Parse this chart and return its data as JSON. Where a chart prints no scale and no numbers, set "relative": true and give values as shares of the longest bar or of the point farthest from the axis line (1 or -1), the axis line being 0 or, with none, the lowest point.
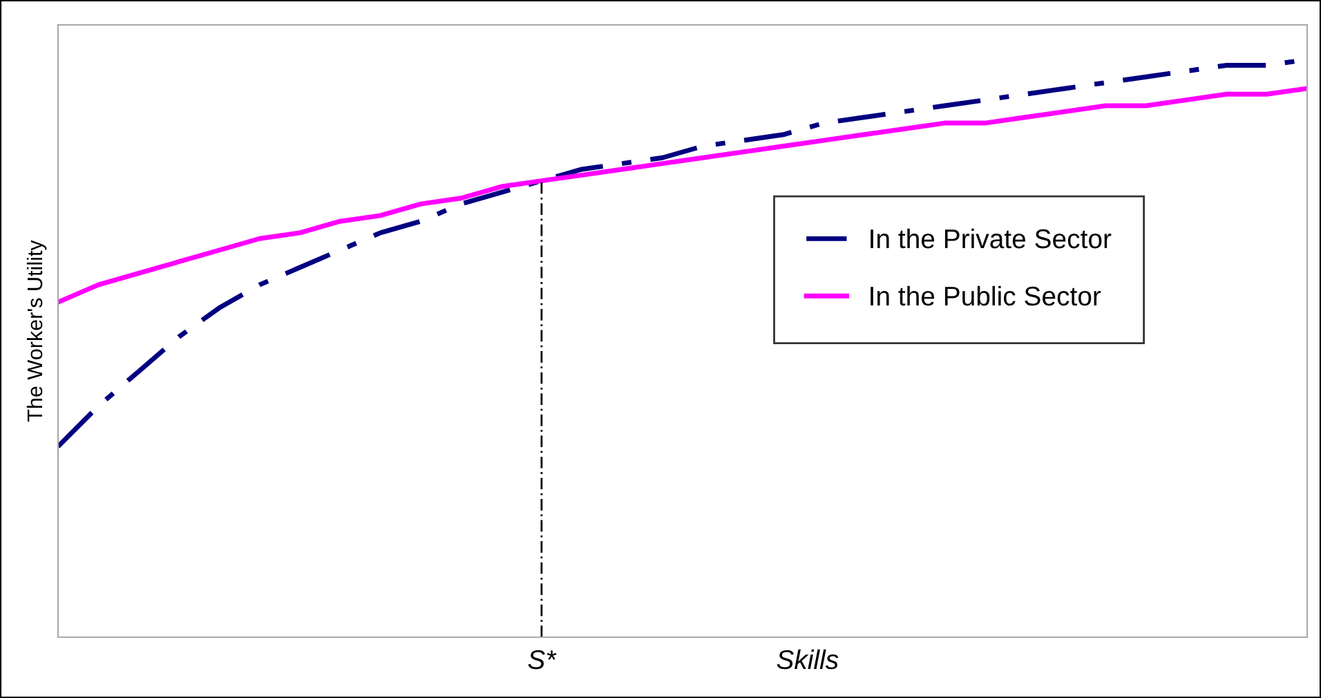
{
  "chart_data": {
    "type": "line",
    "relative": true,
    "ylabel": "The Worker's Utility",
    "xlabel": "Skills",
    "categories": [
      null,
      null,
      null,
      null,
      null,
      null,
      null,
      null,
      null,
      null,
      null,
      null,
      null,
      null,
      null,
      null,
      null,
      null,
      null,
      null,
      null,
      null,
      null,
      null,
      null,
      null,
      null,
      null,
      null,
      null,
      null,
      null
    ],
    "series": [
      {
        "name": "In the Private Sector",
        "color": "#000080",
        "line_style": "dashed",
        "values": [
          0.33,
          0.4,
          0.46,
          0.52,
          0.57,
          0.61,
          0.64,
          0.67,
          0.7,
          0.72,
          0.75,
          0.77,
          0.79,
          0.81,
          0.82,
          0.83,
          0.85,
          0.86,
          0.87,
          0.89,
          0.9,
          0.91,
          0.92,
          0.93,
          0.94,
          0.95,
          0.96,
          0.97,
          0.98,
          0.99,
          0.99,
          1.0
        ]
      },
      {
        "name": "In the Public Sector",
        "color": "#ff00ff",
        "line_style": "solid",
        "values": [
          0.58,
          0.61,
          0.63,
          0.65,
          0.67,
          0.69,
          0.7,
          0.72,
          0.73,
          0.75,
          0.76,
          0.78,
          0.79,
          0.8,
          0.81,
          0.82,
          0.83,
          0.84,
          0.85,
          0.86,
          0.87,
          0.88,
          0.89,
          0.89,
          0.9,
          0.91,
          0.92,
          0.92,
          0.93,
          0.94,
          0.94,
          0.95
        ]
      }
    ],
    "annotations": [
      "S*"
    ],
    "legend": "right",
    "grid": false,
    "marker": "none"
  }
}
